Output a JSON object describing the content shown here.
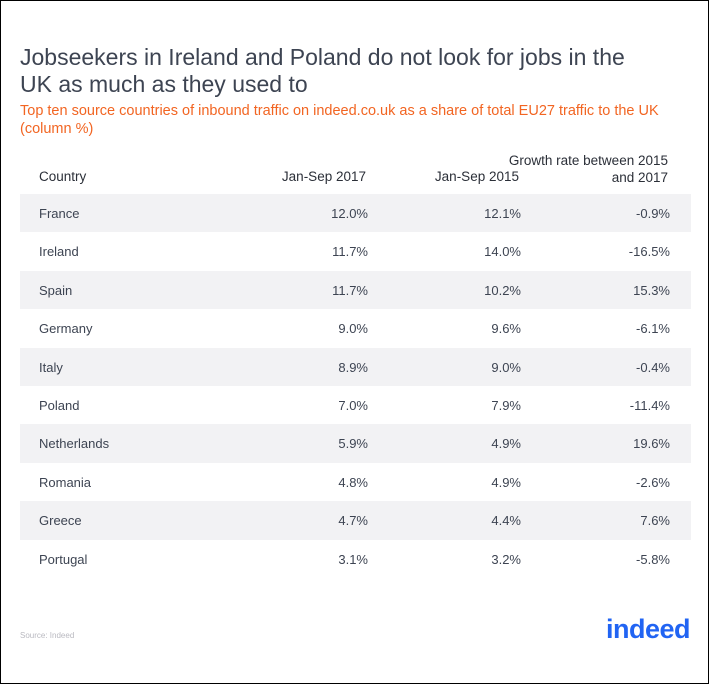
{
  "title": "Jobseekers in Ireland and Poland do not look for jobs in the UK as much as they used to",
  "subtitle": "Top ten source countries of inbound traffic on indeed.co.uk as a share of total EU27 traffic to the UK (column %)",
  "source": "Source: Indeed",
  "logo_text": "indeed",
  "colors": {
    "title": "#3d4452",
    "subtitle": "#f26522",
    "logo": "#2164f3",
    "row_shade": "#f2f2f4"
  },
  "chart_data": {
    "type": "table",
    "columns": [
      "Country",
      "Jan-Sep 2017",
      "Jan-Sep 2015",
      "Growth rate between 2015 and 2017"
    ],
    "rows": [
      [
        "France",
        "12.0%",
        "12.1%",
        "-0.9%"
      ],
      [
        "Ireland",
        "11.7%",
        "14.0%",
        "-16.5%"
      ],
      [
        "Spain",
        "11.7%",
        "10.2%",
        "15.3%"
      ],
      [
        "Germany",
        "9.0%",
        "9.6%",
        "-6.1%"
      ],
      [
        "Italy",
        "8.9%",
        "9.0%",
        "-0.4%"
      ],
      [
        "Poland",
        "7.0%",
        "7.9%",
        "-11.4%"
      ],
      [
        "Netherlands",
        "5.9%",
        "4.9%",
        "19.6%"
      ],
      [
        "Romania",
        "4.8%",
        "4.9%",
        "-2.6%"
      ],
      [
        "Greece",
        "4.7%",
        "4.4%",
        "7.6%"
      ],
      [
        "Portugal",
        "3.1%",
        "3.2%",
        "-5.8%"
      ]
    ]
  }
}
